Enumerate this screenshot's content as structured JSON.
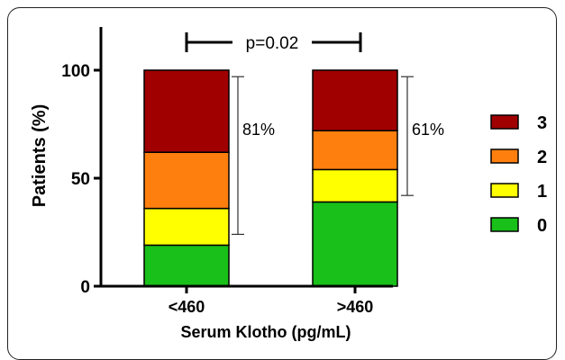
{
  "chart_data": {
    "type": "bar",
    "stacked": true,
    "categories": [
      "<460",
      ">460"
    ],
    "series": [
      {
        "name": "0",
        "color": "#19c019",
        "values": [
          19,
          39
        ]
      },
      {
        "name": "1",
        "color": "#ffff00",
        "values": [
          17,
          15
        ]
      },
      {
        "name": "2",
        "color": "#ff7f0e",
        "values": [
          26,
          18
        ]
      },
      {
        "name": "3",
        "color": "#a00000",
        "values": [
          38,
          28
        ]
      }
    ],
    "xlabel": "Serum Klotho (pg/mL)",
    "ylabel": "Patients (%)",
    "ylim": [
      0,
      120
    ],
    "yticks": [
      0,
      50,
      100
    ],
    "legend_position": "right",
    "annotations": {
      "pvalue": "p=0.02",
      "bracket_labels": [
        "81%",
        "61%"
      ],
      "bracket_ranges": [
        [
          24,
          97
        ],
        [
          42,
          97
        ]
      ]
    }
  }
}
